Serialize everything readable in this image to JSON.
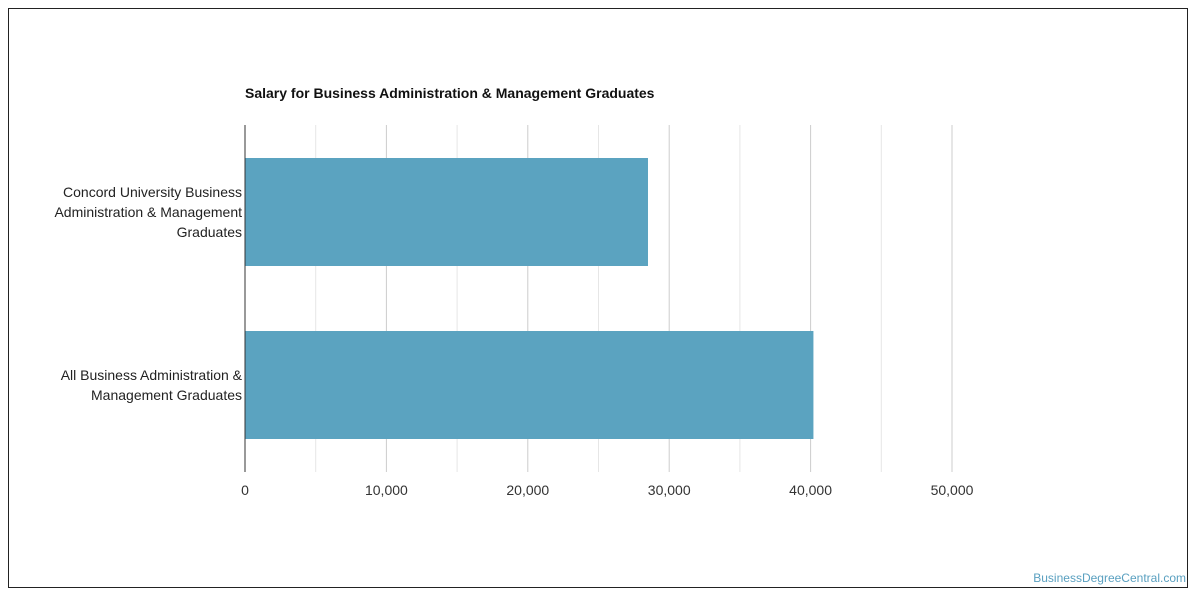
{
  "chart_data": {
    "type": "bar",
    "orientation": "horizontal",
    "title": "Salary for Business Administration & Management Graduates",
    "categories": [
      [
        "Concord University Business",
        "Administration & Management",
        "Graduates"
      ],
      [
        "All Business Administration &",
        "Management Graduates"
      ]
    ],
    "values": [
      28500,
      40200
    ],
    "xlim": [
      0,
      50000
    ],
    "xticks": [
      0,
      10000,
      20000,
      30000,
      40000,
      50000
    ],
    "xtick_labels": [
      "0",
      "10,000",
      "20,000",
      "30,000",
      "40,000",
      "50,000"
    ],
    "minor_gridlines": [
      5000,
      15000,
      25000,
      35000,
      45000
    ],
    "grid": true,
    "legend": "none",
    "bar_color": "#5ba3c0"
  },
  "watermark": "BusinessDegreeCentral.com"
}
